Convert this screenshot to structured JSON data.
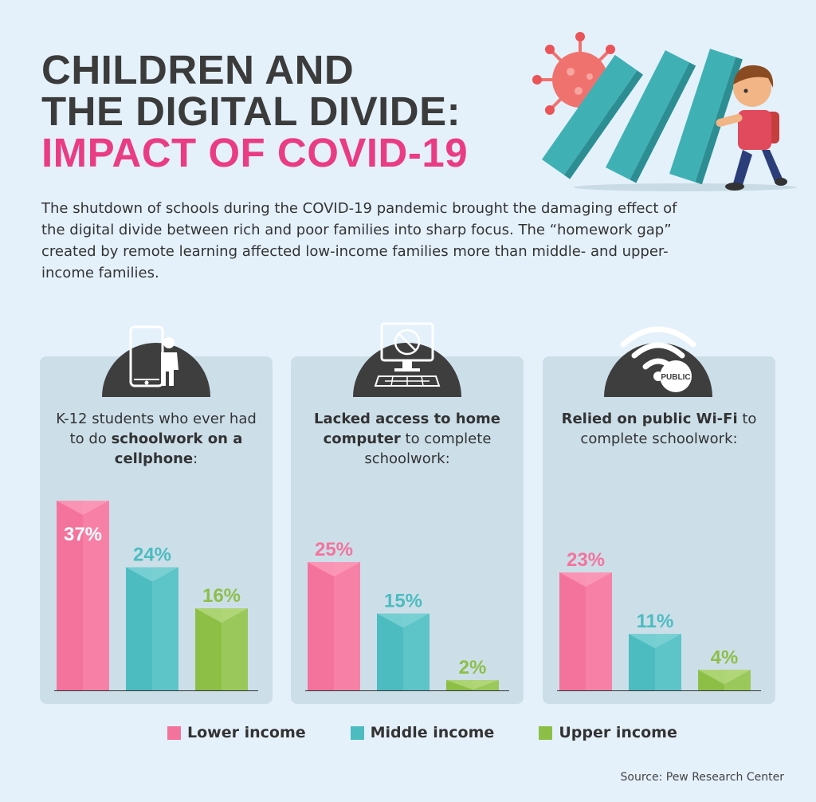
{
  "title": {
    "line1": "CHILDREN AND",
    "line2": "THE DIGITAL DIVIDE:",
    "line3": "IMPACT OF COVID-19"
  },
  "intro": "The shutdown of schools during the COVID-19 pandemic brought the damaging effect of the digital divide between rich and poor families into sharp focus. The “homework gap” created by remote learning affected low-income families more than middle- and upper-income families.",
  "icons": {
    "public_badge": "PUBLIC"
  },
  "panels": [
    {
      "pre": "K-12 students who ever had to do ",
      "bold": "schoolwork on a cellphone",
      "post": ":"
    },
    {
      "pre": "",
      "bold": "Lacked access to home computer",
      "post": " to complete schoolwork:"
    },
    {
      "pre": "",
      "bold": "Relied on public Wi-Fi",
      "post": " to complete schoolwork:"
    }
  ],
  "legend": [
    "Lower income",
    "Middle income",
    "Upper income"
  ],
  "source": "Source: Pew Research Center",
  "colors": {
    "lower": "#f4739c",
    "lower_dark": "#f2689a",
    "middle": "#4cbcc0",
    "middle_dark": "#3eb0b5",
    "upper": "#8dbf47",
    "upper_dark": "#82b63d",
    "title_accent": "#ea3c84",
    "panel_bg": "#ccdfe9",
    "icon_bg": "#3e3e3e"
  },
  "chart_data": [
    {
      "type": "bar",
      "title": "K-12 students who ever had to do schoolwork on a cellphone:",
      "categories": [
        "Lower income",
        "Middle income",
        "Upper income"
      ],
      "values": [
        37,
        24,
        16
      ],
      "labels": [
        "37%",
        "24%",
        "16%"
      ],
      "ylim": [
        0,
        37
      ]
    },
    {
      "type": "bar",
      "title": "Lacked access to home computer to complete schoolwork:",
      "categories": [
        "Lower income",
        "Middle income",
        "Upper income"
      ],
      "values": [
        25,
        15,
        2
      ],
      "labels": [
        "25%",
        "15%",
        "2%"
      ],
      "ylim": [
        0,
        37
      ]
    },
    {
      "type": "bar",
      "title": "Relied on public Wi-Fi to complete schoolwork:",
      "categories": [
        "Lower income",
        "Middle income",
        "Upper income"
      ],
      "values": [
        23,
        11,
        4
      ],
      "labels": [
        "23%",
        "11%",
        "4%"
      ],
      "ylim": [
        0,
        37
      ]
    }
  ]
}
